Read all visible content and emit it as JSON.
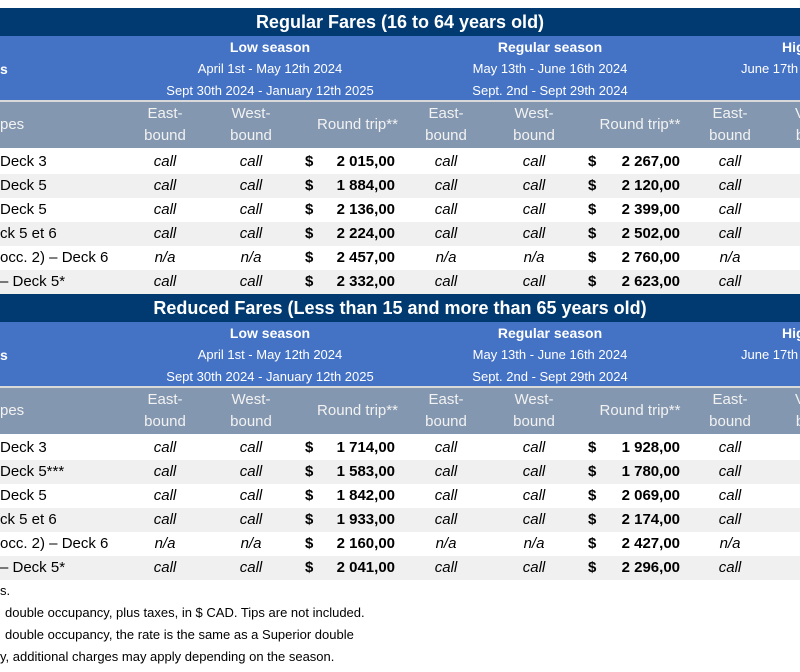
{
  "sections": [
    {
      "title": "Regular Fares (16 to 64 years old)",
      "row_header_fragment": "s",
      "types_header_fragment": "pes",
      "seasons": [
        {
          "name": "Low season",
          "dates1": "April 1st - May 12th  2024",
          "dates2": "Sept 30th 2024 - January 12th 2025"
        },
        {
          "name": "Regular season",
          "dates1": "May 13th  - June 16th  2024",
          "dates2": "Sept. 2nd - Sept 29th 2024"
        },
        {
          "name": "Hig",
          "dates1": "June 17th",
          "dates2": ""
        }
      ],
      "col_headers": {
        "east1": "East-",
        "east2": "bound",
        "west1": "West-",
        "west2": "bound",
        "round": "Round trip**",
        "west_cut1": "V",
        "west_cut2": "b"
      },
      "rows": [
        {
          "label": "Deck 3",
          "low_east": "call",
          "low_west": "call",
          "low_round": "2 015,00",
          "reg_east": "call",
          "reg_west": "call",
          "reg_round": "2 267,00",
          "high_east": "call"
        },
        {
          "label": "Deck 5",
          "low_east": "call",
          "low_west": "call",
          "low_round": "1 884,00",
          "reg_east": "call",
          "reg_west": "call",
          "reg_round": "2 120,00",
          "high_east": "call"
        },
        {
          "label": "Deck 5",
          "low_east": "call",
          "low_west": "call",
          "low_round": "2 136,00",
          "reg_east": "call",
          "reg_west": "call",
          "reg_round": "2 399,00",
          "high_east": "call"
        },
        {
          "label": "ck 5 et 6",
          "low_east": "call",
          "low_west": "call",
          "low_round": "2 224,00",
          "reg_east": "call",
          "reg_west": "call",
          "reg_round": "2 502,00",
          "high_east": "call"
        },
        {
          "label": "occ. 2) – Deck 6",
          "low_east": "n/a",
          "low_west": "n/a",
          "low_round": "2 457,00",
          "reg_east": "n/a",
          "reg_west": "n/a",
          "reg_round": "2 760,00",
          "high_east": "n/a"
        },
        {
          "label": "– Deck  5*",
          "low_east": "call",
          "low_west": "call",
          "low_round": "2 332,00",
          "reg_east": "call",
          "reg_west": "call",
          "reg_round": "2 623,00",
          "high_east": "call"
        }
      ]
    },
    {
      "title": "Reduced Fares (Less than 15 and more than 65 years old)",
      "row_header_fragment": "s",
      "types_header_fragment": "pes",
      "seasons": [
        {
          "name": "Low season",
          "dates1": "April 1st - May 12th  2024",
          "dates2": "Sept 30th 2024 - January 12th 2025"
        },
        {
          "name": "Regular season",
          "dates1": "May 13th  - June 16th  2024",
          "dates2": "Sept. 2nd - Sept 29th 2024"
        },
        {
          "name": "Hig",
          "dates1": "June 17th",
          "dates2": ""
        }
      ],
      "col_headers": {
        "east1": "East-",
        "east2": "bound",
        "west1": "West-",
        "west2": "bound",
        "round": "Round trip**",
        "west_cut1": "V",
        "west_cut2": "b"
      },
      "rows": [
        {
          "label": "Deck 3",
          "low_east": "call",
          "low_west": "call",
          "low_round": "1 714,00",
          "reg_east": "call",
          "reg_west": "call",
          "reg_round": "1 928,00",
          "high_east": "call"
        },
        {
          "label": "Deck 5***",
          "low_east": "call",
          "low_west": "call",
          "low_round": "1 583,00",
          "reg_east": "call",
          "reg_west": "call",
          "reg_round": "1 780,00",
          "high_east": "call"
        },
        {
          "label": "Deck 5",
          "low_east": "call",
          "low_west": "call",
          "low_round": "1 842,00",
          "reg_east": "call",
          "reg_west": "call",
          "reg_round": "2 069,00",
          "high_east": "call"
        },
        {
          "label": "ck 5 et 6",
          "low_east": "call",
          "low_west": "call",
          "low_round": "1 933,00",
          "reg_east": "call",
          "reg_west": "call",
          "reg_round": "2 174,00",
          "high_east": "call"
        },
        {
          "label": "occ. 2) – Deck 6",
          "low_east": "n/a",
          "low_west": "n/a",
          "low_round": "2 160,00",
          "reg_east": "n/a",
          "reg_west": "n/a",
          "reg_round": "2 427,00",
          "high_east": "n/a"
        },
        {
          "label": "– Deck 5*",
          "low_east": "call",
          "low_west": "call",
          "low_round": "2 041,00",
          "reg_east": "call",
          "reg_west": "call",
          "reg_round": "2 296,00",
          "high_east": "call"
        }
      ]
    }
  ],
  "currency_symbol": "$",
  "footnotes": [
    "s.",
    "double occupancy, plus taxes, in $ CAD. Tips are not included.",
    "double occupancy, the rate is the same as a Superior double",
    "y, additional charges may apply depending on the season."
  ],
  "colors": {
    "title_bg": "#003a70",
    "season_bg": "#4472c4",
    "header_bg": "#8497b0",
    "stripe": "#f0f0f0"
  }
}
